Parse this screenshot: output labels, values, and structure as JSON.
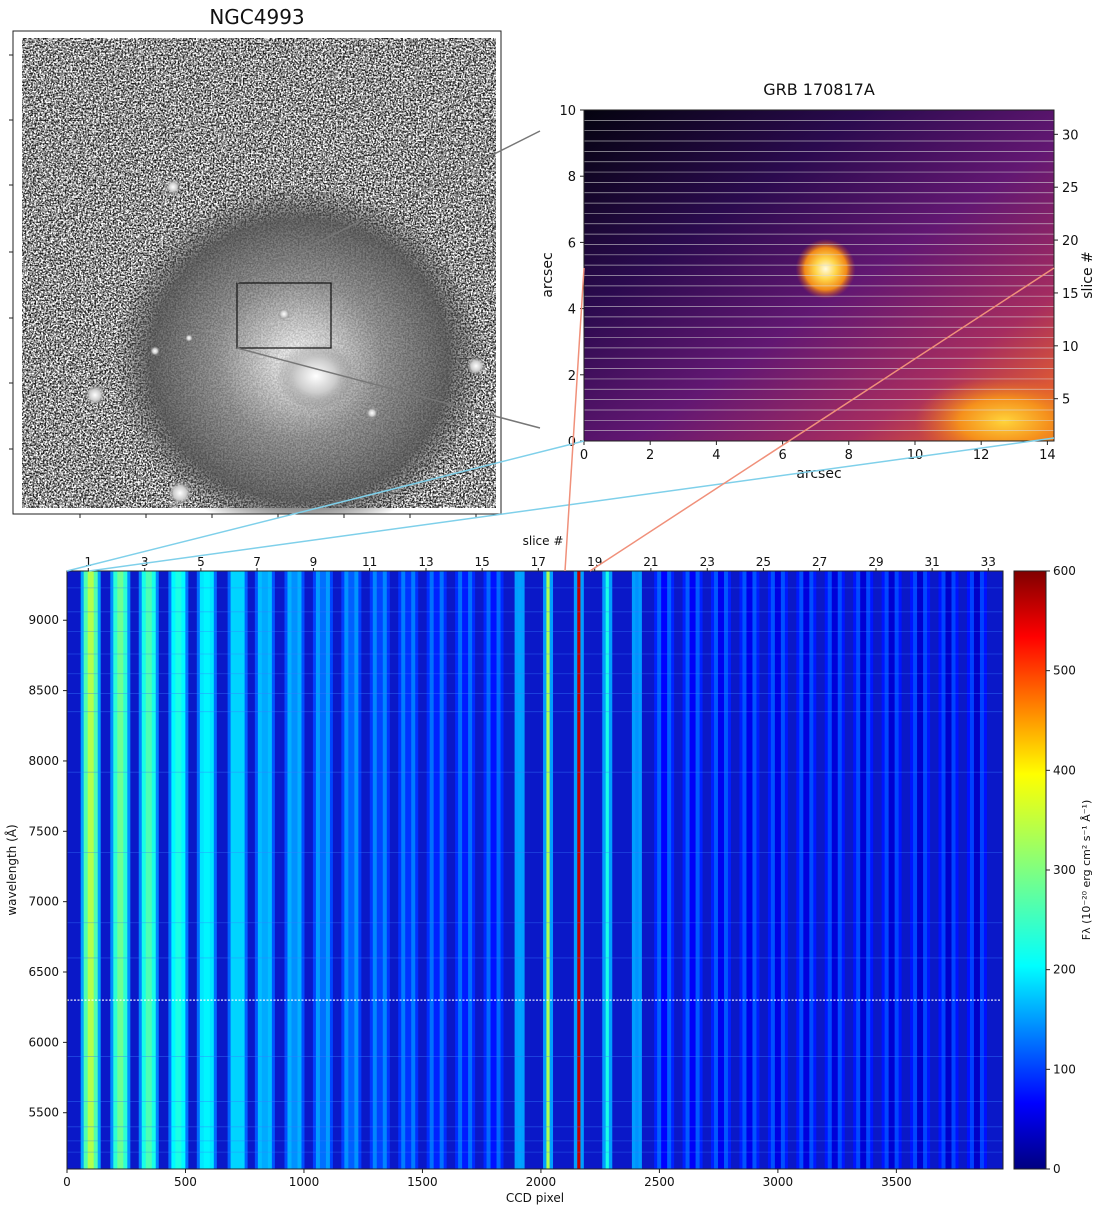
{
  "chart_data": [
    {
      "type": "image",
      "title": "NGC4993",
      "panel": "galaxy image",
      "zoom_box_shown": true
    },
    {
      "type": "heatmap",
      "title": "GRB 170817A",
      "xlabel": "arcsec",
      "ylabel": "arcsec",
      "y2label": "slice #",
      "xlim": [
        0,
        14.2
      ],
      "ylim": [
        0,
        10
      ],
      "y2lim": [
        1,
        32.3
      ],
      "xticks": [
        0,
        2,
        4,
        6,
        8,
        10,
        12,
        14
      ],
      "yticks": [
        0,
        2,
        4,
        6,
        8,
        10
      ],
      "y2ticks": [
        5,
        10,
        15,
        20,
        25,
        30
      ],
      "slice_count": 32,
      "colormap": "inferno",
      "sources": [
        {
          "name": "point source",
          "x": 7.3,
          "y": 5.2
        },
        {
          "name": "galaxy core",
          "x": 12.7,
          "y": 0.6
        }
      ]
    },
    {
      "type": "heatmap",
      "title": "",
      "xlabel": "CCD pixel",
      "ylabel": "wavelength (Å)",
      "x2label": "slice #",
      "xlim": [
        0,
        3950
      ],
      "ylim": [
        5100,
        9350
      ],
      "xticks": [
        0,
        500,
        1000,
        1500,
        2000,
        2500,
        3000,
        3500
      ],
      "yticks": [
        5500,
        6000,
        6500,
        7000,
        7500,
        8000,
        8500,
        9000
      ],
      "slice_ticks": [
        {
          "label": "1",
          "x": 90
        },
        {
          "label": "3",
          "x": 328
        },
        {
          "label": "5",
          "x": 565
        },
        {
          "label": "7",
          "x": 802
        },
        {
          "label": "9",
          "x": 1040
        },
        {
          "label": "11",
          "x": 1277
        },
        {
          "label": "13",
          "x": 1515
        },
        {
          "label": "15",
          "x": 1752
        },
        {
          "label": "17",
          "x": 1989
        },
        {
          "label": "19",
          "x": 2227
        },
        {
          "label": "21",
          "x": 2464
        },
        {
          "label": "23",
          "x": 2702
        },
        {
          "label": "25",
          "x": 2939
        },
        {
          "label": "27",
          "x": 3176
        },
        {
          "label": "29",
          "x": 3414
        },
        {
          "label": "31",
          "x": 3651
        },
        {
          "label": "33",
          "x": 3888
        }
      ],
      "emission_line_wavelength": 6300,
      "colormap": "jet",
      "colorbar": {
        "label": "Fλ (10⁻²⁰ erg cm² s⁻¹ Å⁻¹)",
        "min": 0,
        "max": 600,
        "ticks": [
          0,
          100,
          200,
          300,
          400,
          500,
          600
        ]
      },
      "stripe_peaks": [
        {
          "x": 100,
          "value": 330
        },
        {
          "x": 225,
          "value": 290
        },
        {
          "x": 345,
          "value": 270
        },
        {
          "x": 470,
          "value": 240
        },
        {
          "x": 590,
          "value": 220
        },
        {
          "x": 720,
          "value": 200
        },
        {
          "x": 835,
          "value": 175
        },
        {
          "x": 960,
          "value": 160
        },
        {
          "x": 1080,
          "value": 140
        },
        {
          "x": 1200,
          "value": 130
        },
        {
          "x": 1320,
          "value": 115
        },
        {
          "x": 1440,
          "value": 105
        },
        {
          "x": 1560,
          "value": 95
        },
        {
          "x": 1680,
          "value": 90
        },
        {
          "x": 1800,
          "value": 85
        },
        {
          "x": 1910,
          "value": 170
        },
        {
          "x": 2030,
          "value": 330
        },
        {
          "x": 2160,
          "value": 560
        },
        {
          "x": 2280,
          "value": 240
        },
        {
          "x": 2405,
          "value": 160
        },
        {
          "x": 2520,
          "value": 75
        },
        {
          "x": 2640,
          "value": 70
        },
        {
          "x": 2760,
          "value": 65
        },
        {
          "x": 2880,
          "value": 62
        },
        {
          "x": 3000,
          "value": 58
        },
        {
          "x": 3120,
          "value": 55
        },
        {
          "x": 3240,
          "value": 52
        },
        {
          "x": 3360,
          "value": 50
        },
        {
          "x": 3480,
          "value": 48
        },
        {
          "x": 3600,
          "value": 46
        },
        {
          "x": 3720,
          "value": 44
        },
        {
          "x": 3840,
          "value": 42
        }
      ]
    }
  ]
}
